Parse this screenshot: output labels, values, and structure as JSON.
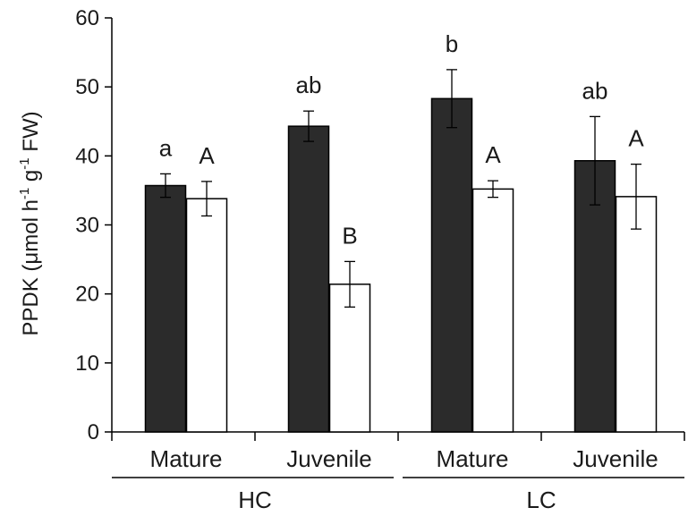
{
  "chart_data": {
    "type": "bar",
    "title": "",
    "ylabel": {
      "main": "PPDK (μmol h",
      "sup1": "-1",
      "mid": " g",
      "sup2": "-1",
      "end": " FW)"
    },
    "ylim": [
      0,
      60
    ],
    "yticks": [
      0,
      10,
      20,
      30,
      40,
      50,
      60
    ],
    "grid": false,
    "groups": [
      {
        "label": "HC",
        "categories": [
          "Mature",
          "Juvenile"
        ]
      },
      {
        "label": "LC",
        "categories": [
          "Mature",
          "Juvenile"
        ]
      }
    ],
    "categories": [
      "Mature",
      "Juvenile",
      "Mature",
      "Juvenile"
    ],
    "series": [
      {
        "fill": "#2b2b2b",
        "values": [
          35.7,
          44.3,
          48.3,
          39.3
        ],
        "errors": [
          1.7,
          2.2,
          4.2,
          6.4
        ],
        "letters": [
          "a",
          "ab",
          "b",
          "ab"
        ]
      },
      {
        "fill": "#ffffff",
        "values": [
          33.8,
          21.4,
          35.2,
          34.1
        ],
        "errors": [
          2.5,
          3.3,
          1.2,
          4.7
        ],
        "letters": [
          "A",
          "B",
          "A",
          "A"
        ]
      }
    ]
  }
}
